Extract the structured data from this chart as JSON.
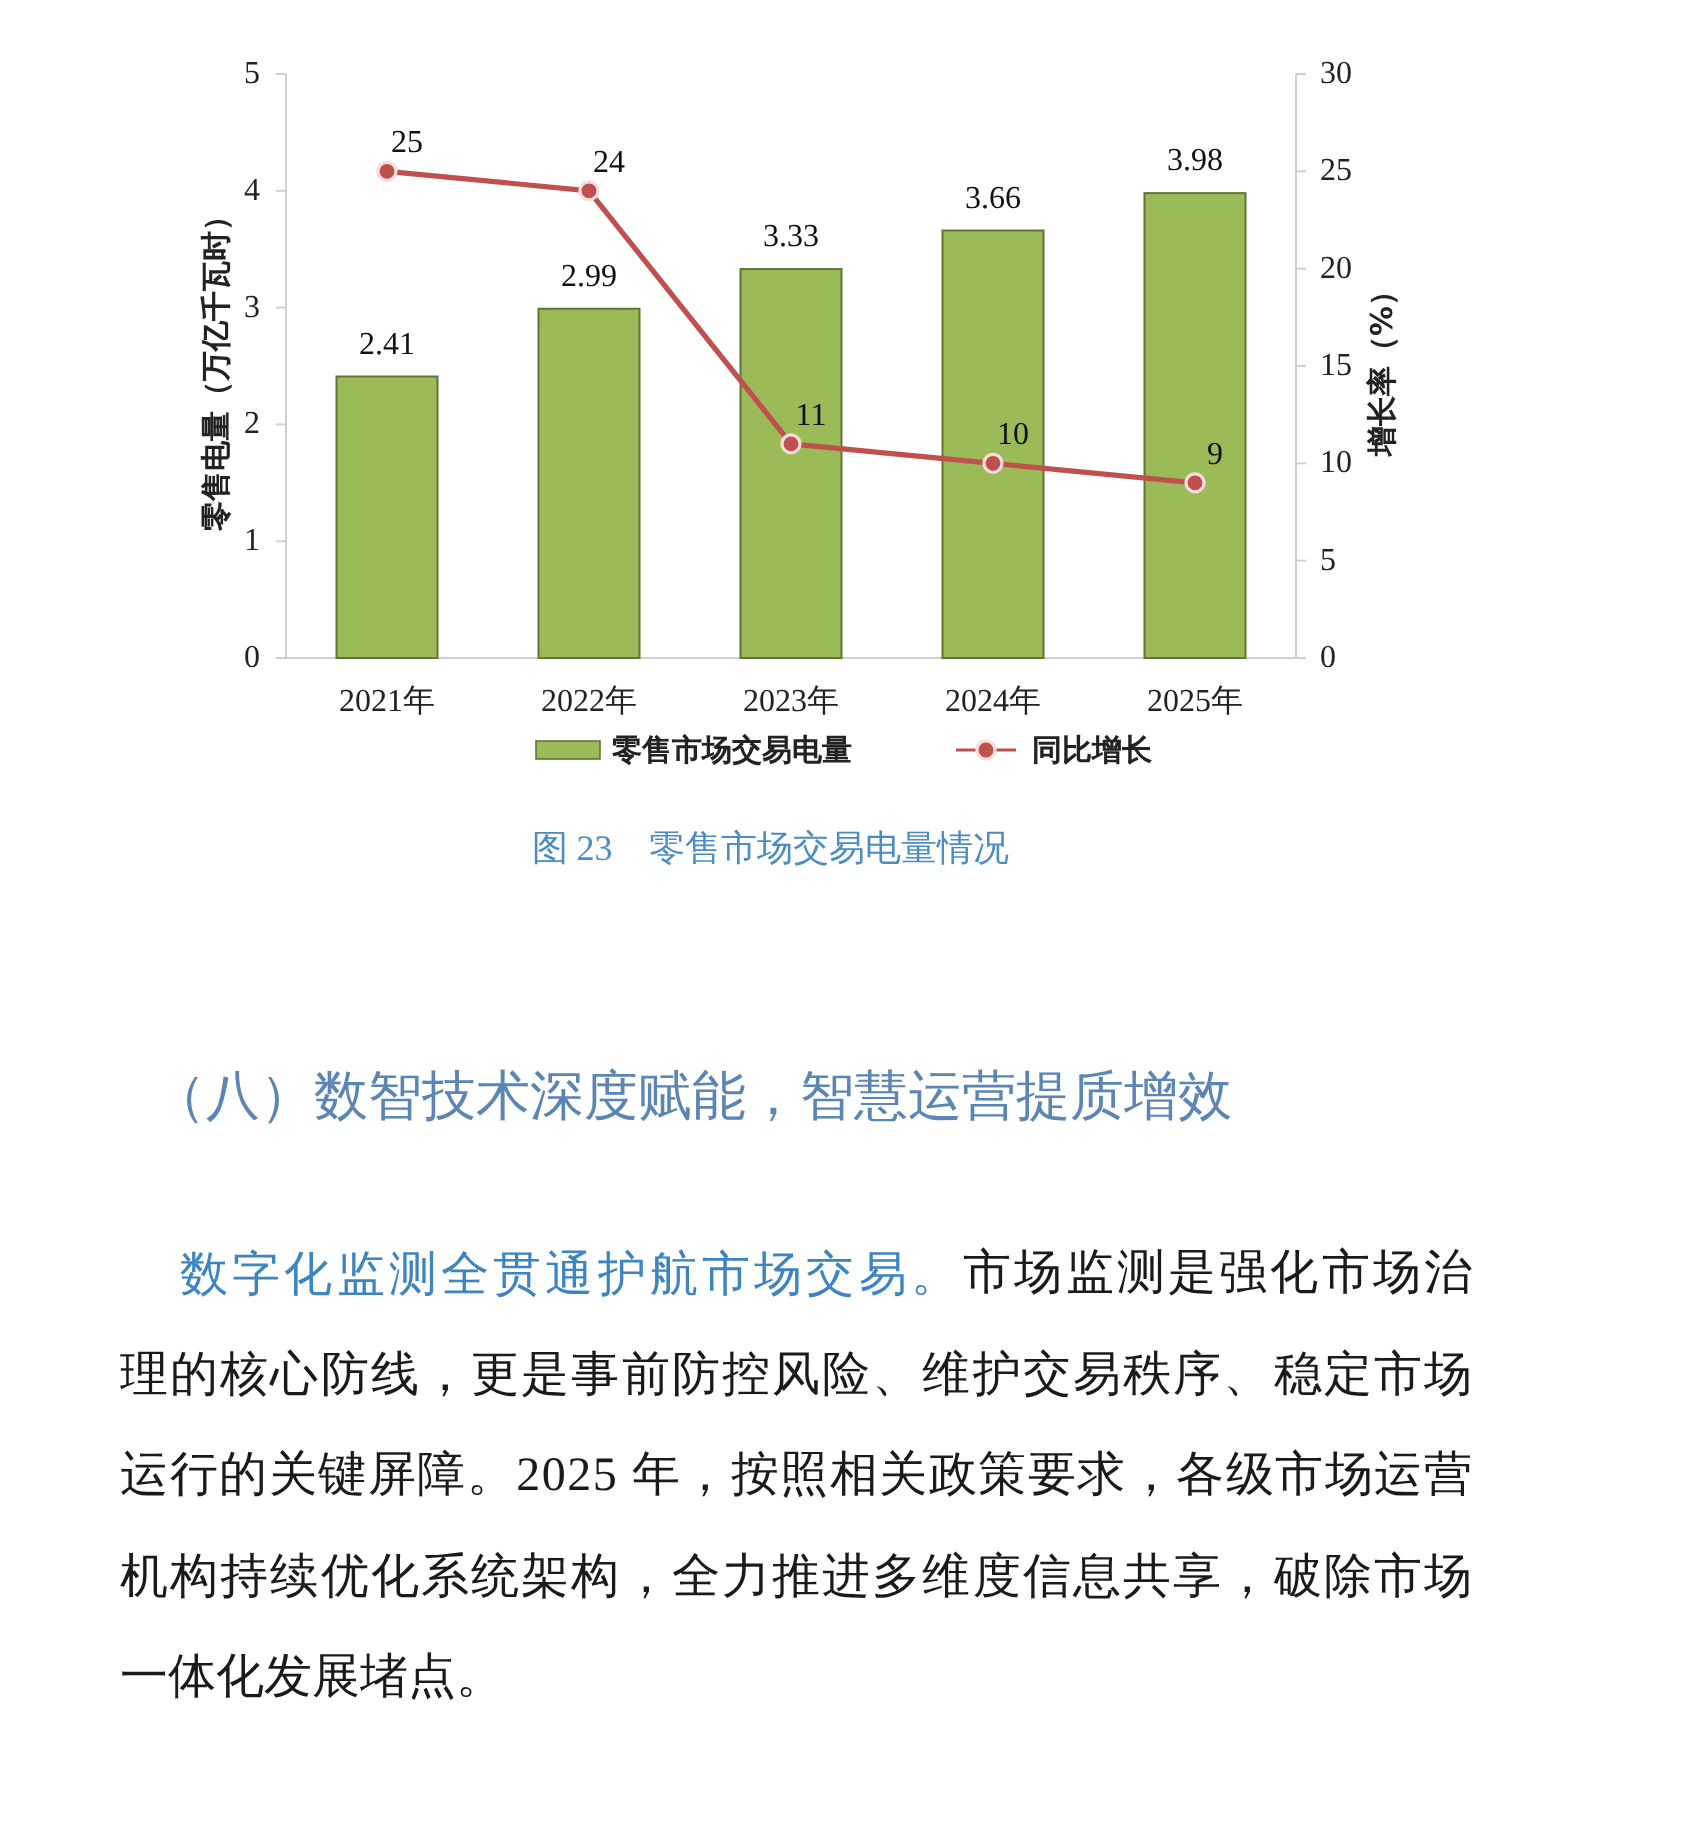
{
  "chart_data": {
    "type": "bar",
    "title": "图 23　零售市场交易电量情况",
    "categories": [
      "2021年",
      "2022年",
      "2023年",
      "2024年",
      "2025年"
    ],
    "series": [
      {
        "name": "零售市场交易电量",
        "color": "#9bbb59",
        "values": [
          2.41,
          2.99,
          3.33,
          3.66,
          3.98
        ]
      },
      {
        "name": "同比增长",
        "type": "line",
        "axis": "y2",
        "color": "#c0504d",
        "values": [
          25,
          24,
          11,
          10,
          9
        ]
      }
    ],
    "ylabel": "零售电量（万亿千瓦时）",
    "y2label": "增长率（%）",
    "ylim": [
      0,
      5
    ],
    "yticks": [
      0,
      1,
      2,
      3,
      4,
      5
    ],
    "y2lim": [
      0,
      30
    ],
    "y2ticks": [
      0,
      5,
      10,
      15,
      20,
      25,
      30
    ],
    "data_labels": true,
    "legend": "bottom",
    "marker": "circle",
    "line_style": "solid",
    "annotations": [
      "（八）数智技术深度赋能，智慧运营提质增效",
      "数字化监测全贯通护航市场交易。市场监测是强化市场治理的核心防线，更是事前防控风险、维护交易秩序、稳定市场运行的关键屏障。2025 年，按照相关政策要求，各级市场运营机构持续优化系统架构，全力推进多维度信息共享，破除市场一体化发展堵点。"
    ]
  }
}
